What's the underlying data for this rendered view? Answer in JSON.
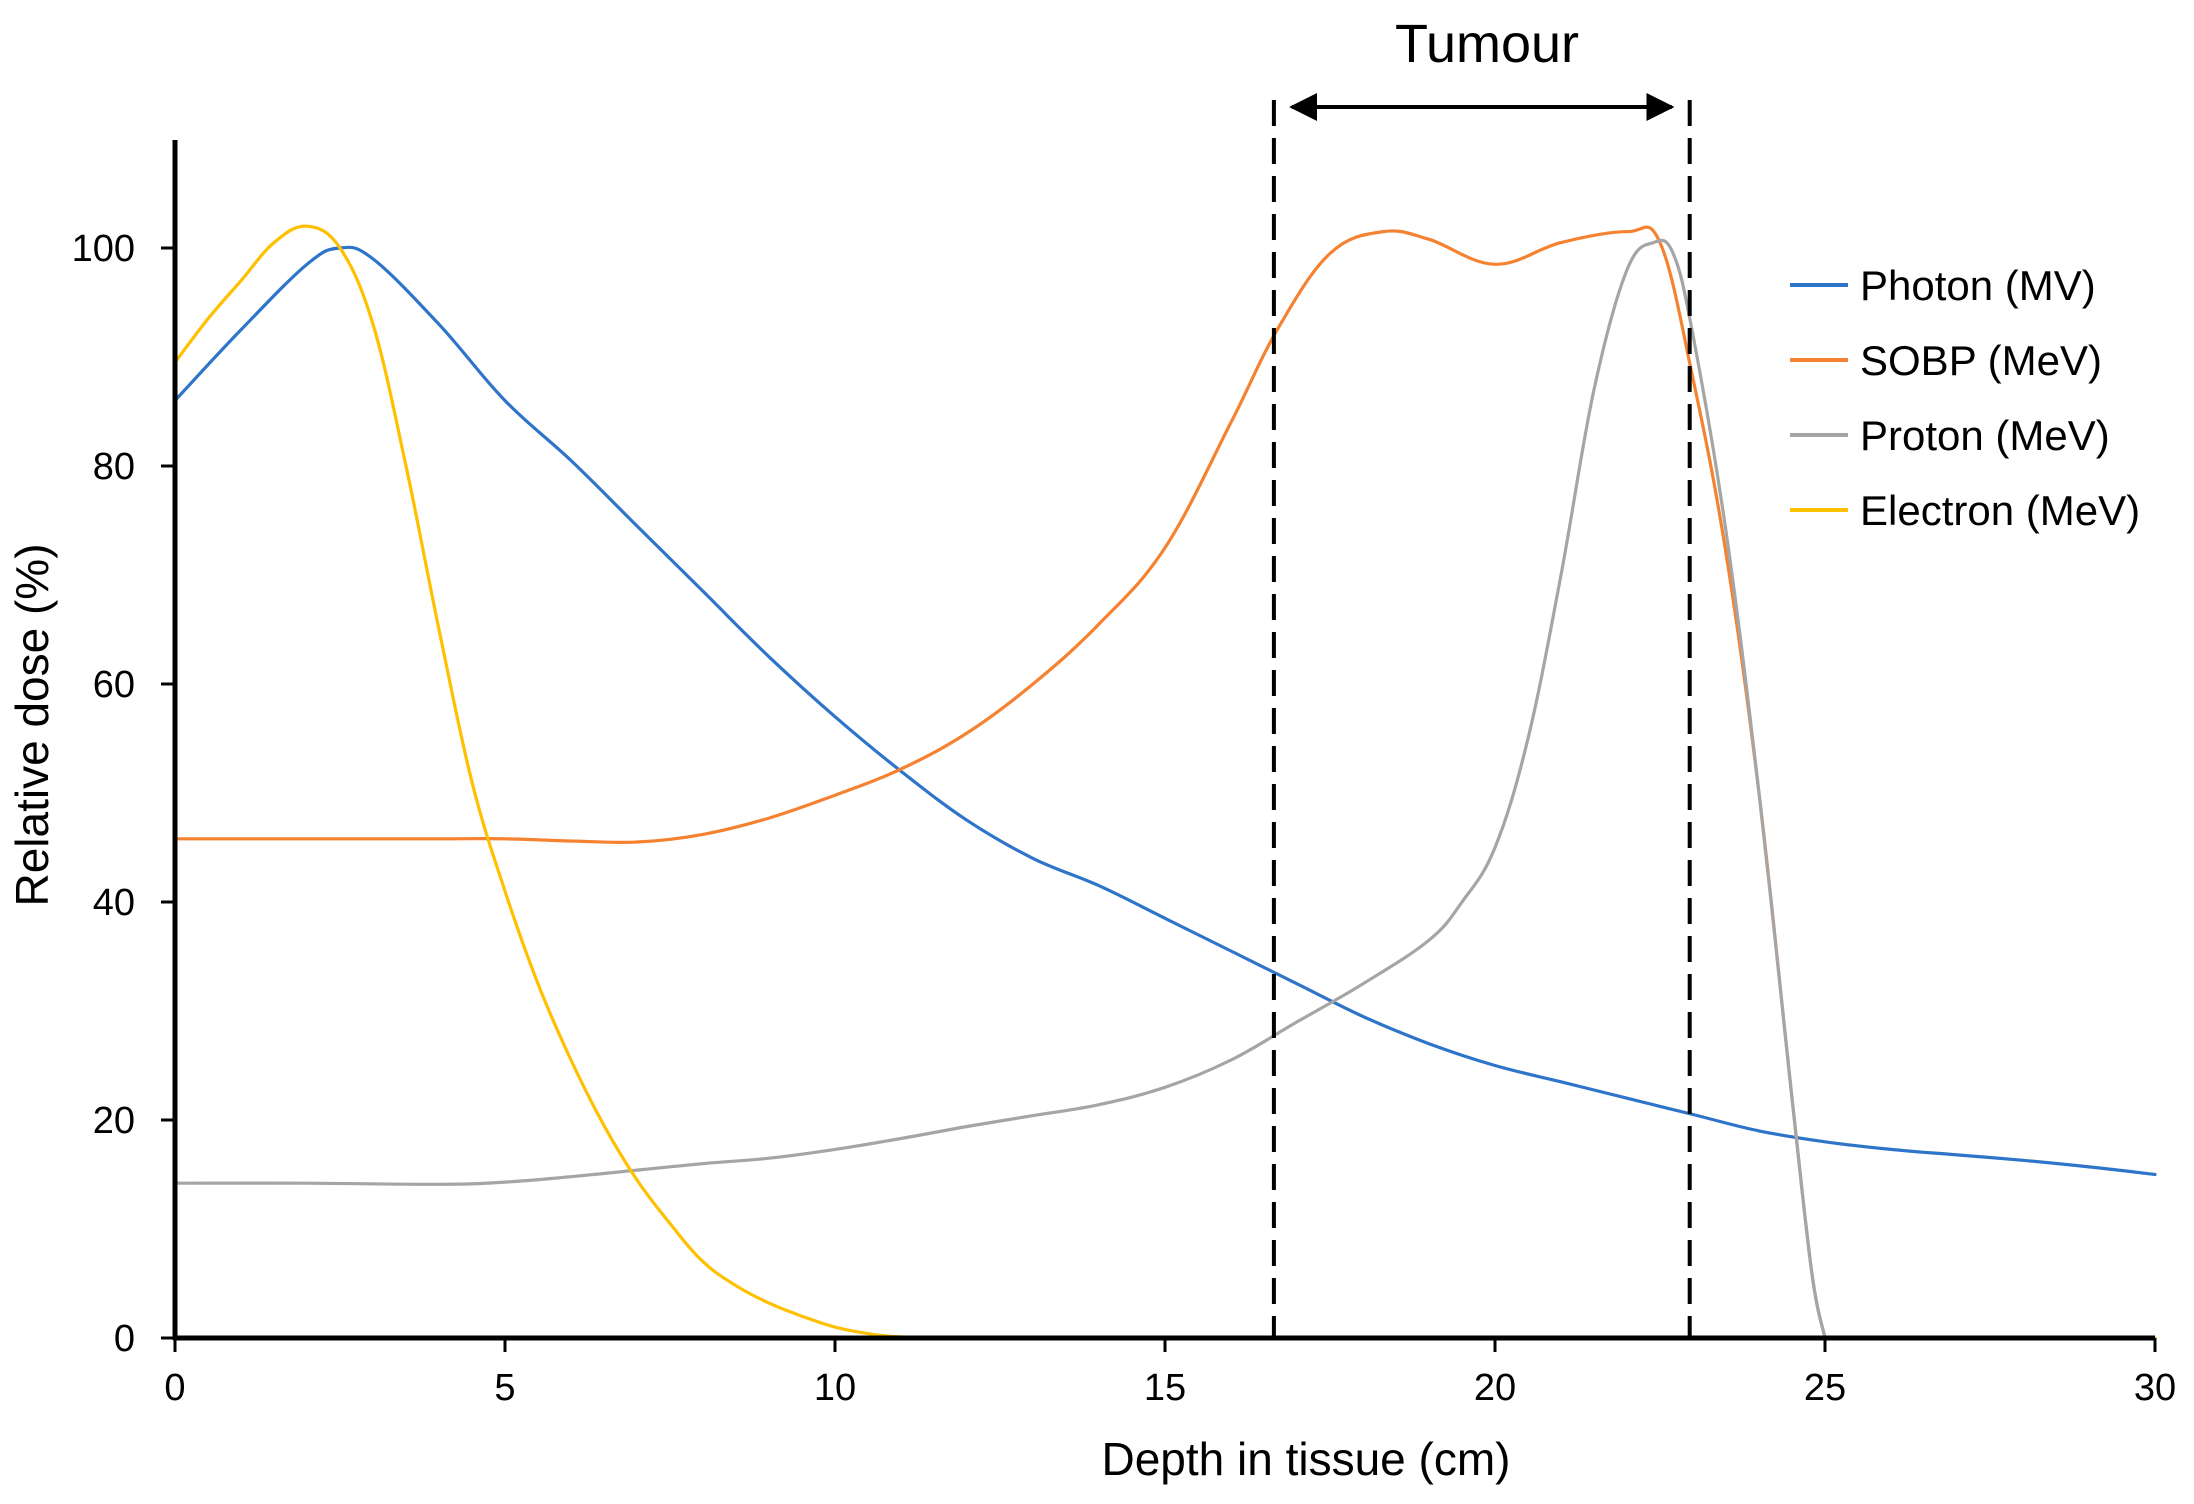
{
  "chart_data": {
    "type": "line",
    "title": "",
    "xlabel": "Depth in tissue (cm)",
    "ylabel": "Relative dose (%)",
    "xlim": [
      0,
      30
    ],
    "ylim": [
      0,
      110
    ],
    "xticks": [
      0,
      5,
      10,
      15,
      20,
      25,
      30
    ],
    "yticks": [
      0,
      20,
      40,
      60,
      80,
      100
    ],
    "grid": false,
    "legend_position": "top-right",
    "series": [
      {
        "name": "Photon (MV)",
        "color": "#2E75C9",
        "points": [
          [
            0,
            86
          ],
          [
            1,
            92.5
          ],
          [
            2,
            98.5
          ],
          [
            2.5,
            100
          ],
          [
            3,
            99
          ],
          [
            4,
            93
          ],
          [
            5,
            86
          ],
          [
            6,
            80.5
          ],
          [
            7,
            74.5
          ],
          [
            8,
            68.5
          ],
          [
            9,
            62.5
          ],
          [
            10,
            57
          ],
          [
            11,
            52
          ],
          [
            12,
            47.5
          ],
          [
            13,
            44
          ],
          [
            14,
            41.5
          ],
          [
            15,
            38.5
          ],
          [
            16,
            35.5
          ],
          [
            17,
            32.5
          ],
          [
            18,
            29.5
          ],
          [
            19,
            27
          ],
          [
            20,
            25
          ],
          [
            21,
            23.5
          ],
          [
            22,
            22
          ],
          [
            23,
            20.5
          ],
          [
            24,
            19
          ],
          [
            25,
            18
          ],
          [
            26,
            17.3
          ],
          [
            27,
            16.8
          ],
          [
            28,
            16.3
          ],
          [
            29,
            15.7
          ],
          [
            30,
            15
          ]
        ]
      },
      {
        "name": "SOBP (MeV)",
        "color": "#F58231",
        "points": [
          [
            0,
            45.8
          ],
          [
            2,
            45.8
          ],
          [
            4,
            45.8
          ],
          [
            5,
            45.8
          ],
          [
            6,
            45.6
          ],
          [
            7,
            45.5
          ],
          [
            8,
            46.2
          ],
          [
            9,
            47.7
          ],
          [
            10,
            49.8
          ],
          [
            11,
            52.2
          ],
          [
            12,
            55.5
          ],
          [
            13,
            60
          ],
          [
            14,
            65.5
          ],
          [
            15,
            72.5
          ],
          [
            16,
            84
          ],
          [
            16.7,
            92.5
          ],
          [
            17.5,
            99.5
          ],
          [
            18.3,
            101.5
          ],
          [
            19,
            100.8
          ],
          [
            20,
            98.5
          ],
          [
            21,
            100.5
          ],
          [
            22,
            101.5
          ],
          [
            22.5,
            100.5
          ],
          [
            23,
            88
          ],
          [
            23.5,
            72
          ],
          [
            24,
            50
          ],
          [
            24.5,
            22
          ],
          [
            24.8,
            6
          ],
          [
            25,
            0
          ]
        ]
      },
      {
        "name": "Proton (MeV)",
        "color": "#A5A5A5",
        "points": [
          [
            0,
            14.2
          ],
          [
            2,
            14.2
          ],
          [
            4,
            14.1
          ],
          [
            5,
            14.3
          ],
          [
            6,
            14.8
          ],
          [
            7,
            15.4
          ],
          [
            8,
            16
          ],
          [
            9,
            16.5
          ],
          [
            10,
            17.3
          ],
          [
            11,
            18.3
          ],
          [
            12,
            19.4
          ],
          [
            13,
            20.4
          ],
          [
            14,
            21.4
          ],
          [
            15,
            23
          ],
          [
            16,
            25.5
          ],
          [
            17,
            29
          ],
          [
            18,
            32.5
          ],
          [
            19,
            36.5
          ],
          [
            19.5,
            40
          ],
          [
            20,
            45
          ],
          [
            20.5,
            55
          ],
          [
            21,
            70
          ],
          [
            21.5,
            87
          ],
          [
            22,
            98
          ],
          [
            22.4,
            100.5
          ],
          [
            22.7,
            99.5
          ],
          [
            23,
            92
          ],
          [
            23.5,
            74
          ],
          [
            24,
            50
          ],
          [
            24.5,
            22
          ],
          [
            24.8,
            6
          ],
          [
            25,
            0
          ]
        ]
      },
      {
        "name": "Electron (MeV)",
        "color": "#FFC000",
        "points": [
          [
            0,
            89.5
          ],
          [
            0.5,
            93.5
          ],
          [
            1,
            97
          ],
          [
            1.5,
            100.5
          ],
          [
            2,
            102
          ],
          [
            2.5,
            100
          ],
          [
            3,
            93
          ],
          [
            3.5,
            80
          ],
          [
            4,
            65
          ],
          [
            4.5,
            51
          ],
          [
            5,
            41
          ],
          [
            5.5,
            32.5
          ],
          [
            6,
            25.5
          ],
          [
            6.5,
            19.5
          ],
          [
            7,
            14.5
          ],
          [
            7.5,
            10.5
          ],
          [
            8,
            7
          ],
          [
            8.5,
            4.8
          ],
          [
            9,
            3.2
          ],
          [
            9.5,
            2
          ],
          [
            10,
            1
          ],
          [
            10.5,
            0.4
          ],
          [
            11,
            0.1
          ],
          [
            12,
            0
          ],
          [
            15,
            0
          ],
          [
            20,
            0
          ],
          [
            25,
            0
          ],
          [
            30,
            0
          ]
        ]
      }
    ],
    "annotations": {
      "tumour_label": "Tumour",
      "tumour_start_x": 16.65,
      "tumour_end_x": 22.95
    }
  }
}
